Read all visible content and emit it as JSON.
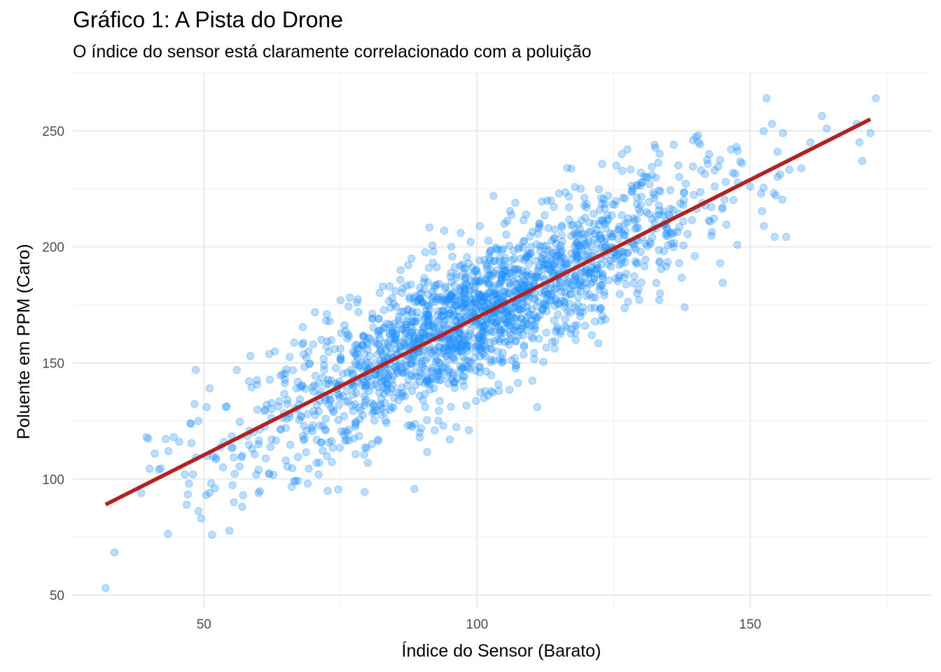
{
  "chart_data": {
    "type": "scatter",
    "title": "Gráfico 1: A Pista do Drone",
    "subtitle": "O índice do sensor está claramente correlacionado com a poluição",
    "xlabel": "Índice do Sensor (Barato)",
    "ylabel": "Poluente em PPM (Caro)",
    "xlim": [
      26,
      183
    ],
    "ylim": [
      44,
      275
    ],
    "x_ticks": [
      50,
      100,
      150
    ],
    "y_ticks": [
      50,
      100,
      150,
      200,
      250
    ],
    "grid": true,
    "legend": "none",
    "point_color": "#1E90FF",
    "point_opacity": 0.3,
    "line_color": "#B22222",
    "fit_line": {
      "x": [
        32,
        172
      ],
      "y": [
        89,
        255
      ]
    },
    "n_points": 2000,
    "points": [
      [
        32,
        53
      ],
      [
        38.5,
        94
      ],
      [
        39.5,
        118
      ],
      [
        41,
        111
      ],
      [
        43.5,
        112
      ],
      [
        44.5,
        118
      ],
      [
        45.5,
        116
      ],
      [
        46.5,
        102
      ],
      [
        47.5,
        124
      ],
      [
        48,
        102
      ],
      [
        48.5,
        147
      ],
      [
        49,
        125
      ],
      [
        50.5,
        131
      ],
      [
        51,
        94
      ],
      [
        51.5,
        76
      ],
      [
        49.5,
        83
      ],
      [
        52,
        96
      ],
      [
        53.5,
        105
      ],
      [
        54,
        131
      ],
      [
        55.5,
        90
      ],
      [
        56,
        147
      ],
      [
        57,
        88
      ],
      [
        58.5,
        153
      ],
      [
        60,
        94
      ],
      [
        61.5,
        132
      ],
      [
        63,
        155
      ],
      [
        65,
        108
      ],
      [
        66.5,
        99
      ],
      [
        68,
        158
      ],
      [
        69,
        98
      ],
      [
        70,
        158
      ],
      [
        71,
        102
      ],
      [
        71.5,
        160
      ],
      [
        72.5,
        171
      ],
      [
        73,
        168
      ],
      [
        75,
        177
      ],
      [
        76,
        117
      ],
      [
        78,
        176
      ],
      [
        80,
        107
      ],
      [
        82,
        169
      ],
      [
        84,
        183
      ],
      [
        86,
        190
      ],
      [
        88,
        195
      ],
      [
        89.5,
        120
      ],
      [
        90.5,
        131
      ],
      [
        92,
        198
      ],
      [
        94,
        207
      ],
      [
        95,
        117
      ],
      [
        97,
        206
      ],
      [
        98.5,
        121
      ],
      [
        100.5,
        209
      ],
      [
        102,
        136
      ],
      [
        103,
        222
      ],
      [
        104,
        138
      ],
      [
        105,
        210
      ],
      [
        107,
        219
      ],
      [
        109,
        214
      ],
      [
        111,
        131
      ],
      [
        113.5,
        220
      ],
      [
        115,
        223
      ],
      [
        116.5,
        234
      ],
      [
        118,
        163
      ],
      [
        120,
        217
      ],
      [
        121,
        162
      ],
      [
        122.5,
        183
      ],
      [
        124,
        222
      ],
      [
        125.5,
        235
      ],
      [
        126.5,
        240
      ],
      [
        127.5,
        242
      ],
      [
        128.5,
        225
      ],
      [
        130,
        232
      ],
      [
        131,
        230
      ],
      [
        132.5,
        244
      ],
      [
        133.5,
        180
      ],
      [
        134.5,
        205
      ],
      [
        136,
        244
      ],
      [
        137,
        193
      ],
      [
        138,
        174
      ],
      [
        139.5,
        246
      ],
      [
        140.5,
        245
      ],
      [
        141,
        233
      ],
      [
        142.5,
        240
      ],
      [
        143.5,
        226
      ],
      [
        144.5,
        193
      ],
      [
        145.5,
        228
      ],
      [
        146.5,
        242
      ],
      [
        147.5,
        243
      ],
      [
        148.5,
        236
      ],
      [
        150,
        226
      ],
      [
        152,
        223
      ],
      [
        152.5,
        209
      ],
      [
        153,
        264
      ],
      [
        154,
        253
      ],
      [
        155,
        241
      ],
      [
        156,
        249
      ],
      [
        161,
        245
      ],
      [
        164,
        251
      ],
      [
        169.5,
        253
      ],
      [
        170,
        245
      ],
      [
        172,
        249
      ],
      [
        173,
        264
      ],
      [
        170.5,
        237
      ],
      [
        91,
        166
      ],
      [
        96,
        175
      ],
      [
        99,
        185
      ],
      [
        103,
        170
      ],
      [
        107,
        181
      ],
      [
        110,
        188
      ],
      [
        114,
        192
      ],
      [
        118,
        205
      ],
      [
        121,
        200
      ],
      [
        124,
        212
      ],
      [
        127,
        210
      ],
      [
        131,
        215
      ],
      [
        85,
        160
      ],
      [
        80,
        150
      ],
      [
        77,
        142
      ],
      [
        73,
        136
      ],
      [
        69,
        128
      ],
      [
        65,
        122
      ],
      [
        60,
        115
      ],
      [
        57,
        110
      ],
      [
        93,
        150
      ],
      [
        97,
        155
      ],
      [
        101,
        160
      ],
      [
        105,
        165
      ],
      [
        86,
        172
      ],
      [
        83,
        165
      ],
      [
        79,
        158
      ],
      [
        75,
        152
      ],
      [
        72,
        147
      ],
      [
        68,
        140
      ]
    ]
  }
}
